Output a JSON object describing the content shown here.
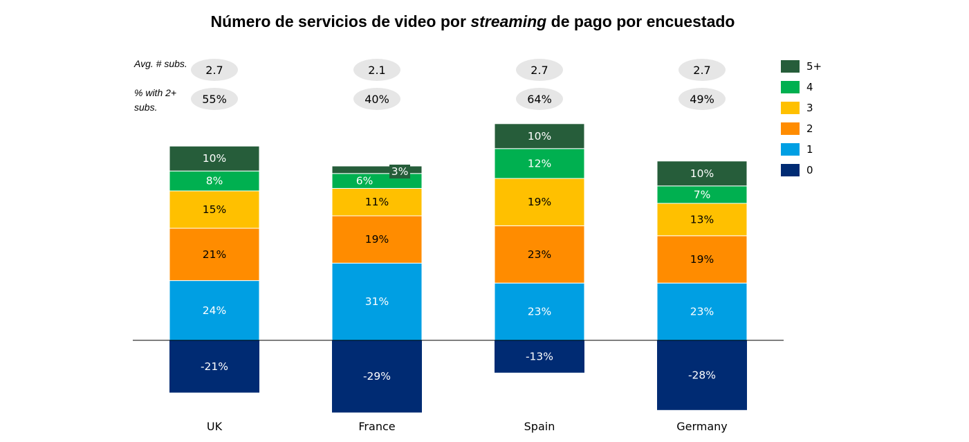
{
  "chart_data": {
    "type": "bar",
    "stacked": true,
    "title_parts": [
      "Número de servicios de video por ",
      "streaming",
      " de pago por encuestado"
    ],
    "categories": [
      "UK",
      "France",
      "Spain",
      "Germany"
    ],
    "series": [
      {
        "name": "0",
        "values": [
          -21,
          -29,
          -13,
          -28
        ],
        "labels": [
          "-21%",
          "-29%",
          "-13%",
          "-28%"
        ],
        "color": "#002B73",
        "text_color": "#FFFFFF"
      },
      {
        "name": "1",
        "values": [
          24,
          31,
          23,
          23
        ],
        "labels": [
          "24%",
          "31%",
          "23%",
          "23%"
        ],
        "color": "#009FE3",
        "text_color": "#FFFFFF"
      },
      {
        "name": "2",
        "values": [
          21,
          19,
          23,
          19
        ],
        "labels": [
          "21%",
          "19%",
          "23%",
          "19%"
        ],
        "color": "#FF8C00",
        "text_color": "#000000"
      },
      {
        "name": "3",
        "values": [
          15,
          11,
          19,
          13
        ],
        "labels": [
          "15%",
          "11%",
          "19%",
          "13%"
        ],
        "color": "#FFC000",
        "text_color": "#000000"
      },
      {
        "name": "4",
        "values": [
          8,
          6,
          12,
          7
        ],
        "labels": [
          "8%",
          "6%",
          "12%",
          "7%"
        ],
        "color": "#00B050",
        "text_color": "#FFFFFF"
      },
      {
        "name": "5+",
        "values": [
          10,
          3,
          10,
          10
        ],
        "labels": [
          "10%",
          "3%",
          "10%",
          "10%"
        ],
        "color": "#265D3A",
        "text_color": "#FFFFFF"
      }
    ],
    "legend_order": [
      "5+",
      "4",
      "3",
      "2",
      "1",
      "0"
    ],
    "legend_position": "right",
    "ylim": [
      -30,
      88
    ],
    "grid": false,
    "baseline": 0,
    "stats_rows": [
      {
        "label": "Avg. # subs.",
        "values": [
          "2.7",
          "2.1",
          "2.7",
          "2.7"
        ]
      },
      {
        "label": "% with 2+ subs.",
        "values": [
          "55%",
          "40%",
          "64%",
          "49%"
        ]
      }
    ]
  }
}
